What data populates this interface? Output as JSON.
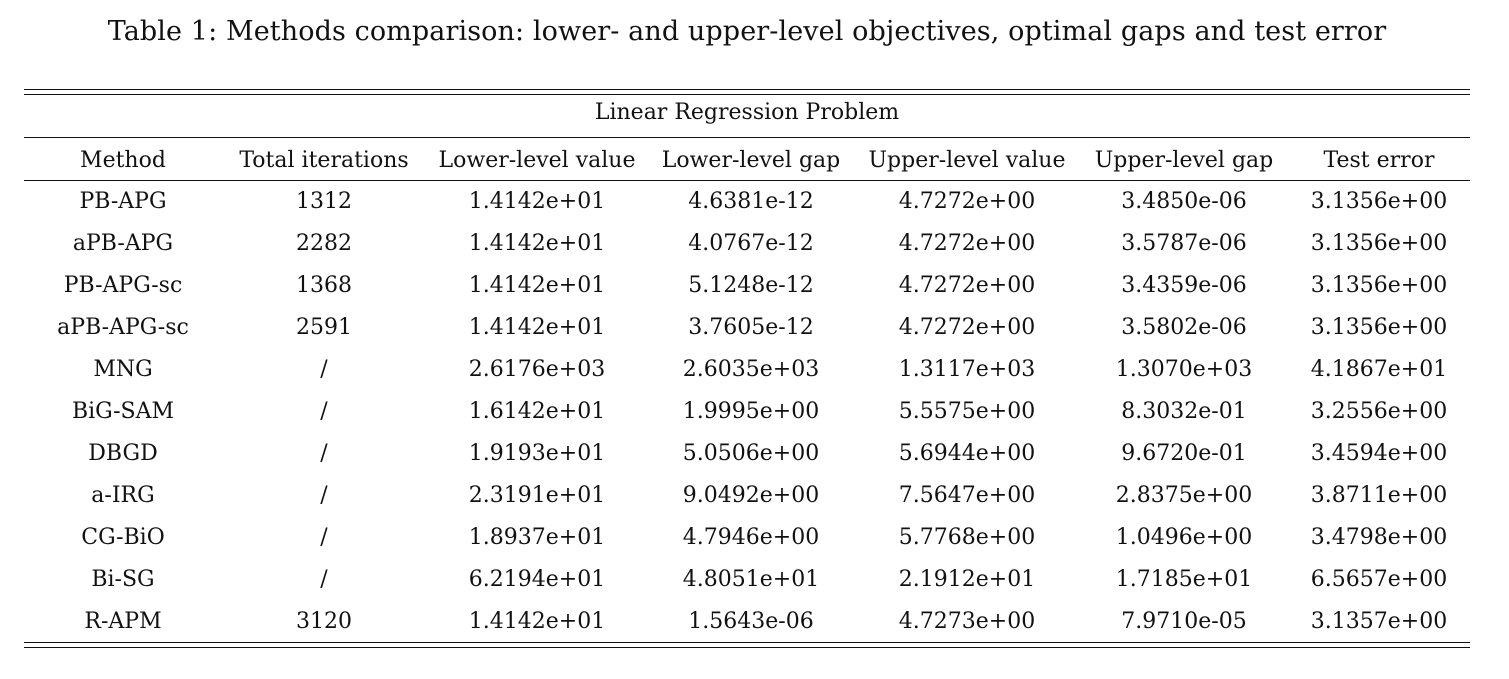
{
  "caption": "Table 1: Methods comparison: lower- and upper-level objectives, optimal gaps and test error",
  "section_title": "Linear Regression Problem",
  "columns": [
    "Method",
    "Total iterations",
    "Lower-level value",
    "Lower-level gap",
    "Upper-level value",
    "Upper-level gap",
    "Test error"
  ],
  "rows": [
    {
      "cells": [
        "PB-APG",
        "1312",
        "1.4142e+01",
        "4.6381e-12",
        "4.7272e+00",
        "3.4850e-06",
        "3.1356e+00"
      ],
      "bold": [
        true,
        false,
        false,
        true,
        false,
        true,
        true
      ]
    },
    {
      "cells": [
        "aPB-APG",
        "2282",
        "1.4142e+01",
        "4.0767e-12",
        "4.7272e+00",
        "3.5787e-06",
        "3.1356e+00"
      ],
      "bold": [
        true,
        false,
        false,
        true,
        false,
        true,
        true
      ]
    },
    {
      "cells": [
        "PB-APG-sc",
        "1368",
        "1.4142e+01",
        "5.1248e-12",
        "4.7272e+00",
        "3.4359e-06",
        "3.1356e+00"
      ],
      "bold": [
        true,
        false,
        false,
        true,
        false,
        true,
        true
      ]
    },
    {
      "cells": [
        "aPB-APG-sc",
        "2591",
        "1.4142e+01",
        "3.7605e-12",
        "4.7272e+00",
        "3.5802e-06",
        "3.1356e+00"
      ],
      "bold": [
        true,
        false,
        false,
        true,
        false,
        true,
        true
      ]
    },
    {
      "cells": [
        "MNG",
        "/",
        "2.6176e+03",
        "2.6035e+03",
        "1.3117e+03",
        "1.3070e+03",
        "4.1867e+01"
      ],
      "bold": [
        false,
        false,
        false,
        false,
        false,
        false,
        false
      ]
    },
    {
      "cells": [
        "BiG-SAM",
        "/",
        "1.6142e+01",
        "1.9995e+00",
        "5.5575e+00",
        "8.3032e-01",
        "3.2556e+00"
      ],
      "bold": [
        false,
        false,
        false,
        false,
        false,
        false,
        false
      ]
    },
    {
      "cells": [
        "DBGD",
        "/",
        "1.9193e+01",
        "5.0506e+00",
        "5.6944e+00",
        "9.6720e-01",
        "3.4594e+00"
      ],
      "bold": [
        false,
        false,
        false,
        false,
        false,
        false,
        false
      ]
    },
    {
      "cells": [
        "a-IRG",
        "/",
        "2.3191e+01",
        "9.0492e+00",
        "7.5647e+00",
        "2.8375e+00",
        "3.8711e+00"
      ],
      "bold": [
        false,
        false,
        false,
        false,
        false,
        false,
        false
      ]
    },
    {
      "cells": [
        "CG-BiO",
        "/",
        "1.8937e+01",
        "4.7946e+00",
        "5.7768e+00",
        "1.0496e+00",
        "3.4798e+00"
      ],
      "bold": [
        false,
        false,
        false,
        false,
        false,
        false,
        false
      ]
    },
    {
      "cells": [
        "Bi-SG",
        "/",
        "6.2194e+01",
        "4.8051e+01",
        "2.1912e+01",
        "1.7185e+01",
        "6.5657e+00"
      ],
      "bold": [
        false,
        false,
        false,
        false,
        false,
        false,
        false
      ]
    },
    {
      "cells": [
        "R-APM",
        "3120",
        "1.4142e+01",
        "1.5643e-06",
        "4.7273e+00",
        "7.9710e-05",
        "3.1357e+00"
      ],
      "bold": [
        false,
        false,
        false,
        false,
        false,
        false,
        false
      ]
    }
  ]
}
